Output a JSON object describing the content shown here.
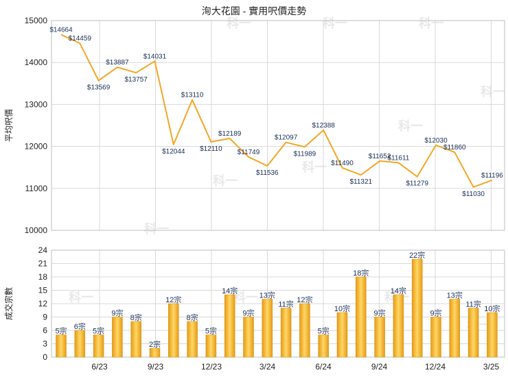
{
  "title": "洵大花園 - 實用呎價走勢",
  "colors": {
    "line": "#f5a623",
    "bar_light": "#ffd766",
    "bar_dark": "#e79a14",
    "grid": "#d8d8d8",
    "label": "#1a2d55"
  },
  "watermark": "科一",
  "chart_data": [
    {
      "type": "line",
      "title": "洵大花園 - 實用呎價走勢",
      "ylabel": "平均呎價",
      "ylim": [
        10000,
        15000
      ],
      "yticks": [
        10000,
        11000,
        12000,
        13000,
        14000,
        15000
      ],
      "grid": true,
      "series": [
        {
          "values": [
            14664,
            14459,
            13569,
            13887,
            13757,
            14031,
            12044,
            13110,
            12110,
            12189,
            11749,
            11536,
            12097,
            11989,
            12388,
            11490,
            11321,
            11652,
            11611,
            11279,
            12030,
            11860,
            11030,
            11196
          ],
          "labels": [
            "$14664",
            "$14459",
            "$13569",
            "$13887",
            "$13757",
            "$14031",
            "$12044",
            "$13110",
            "$12110",
            "$12189",
            "$11749",
            "$11536",
            "$12097",
            "$11989",
            "$12388",
            "$11490",
            "$11321",
            "$11652",
            "$11611",
            "$11279",
            "$12030",
            "$11860",
            "$11030",
            "$11196"
          ]
        }
      ]
    },
    {
      "type": "bar",
      "ylabel": "成交宗數",
      "ylim": [
        0,
        24
      ],
      "yticks": [
        0,
        3,
        6,
        9,
        12,
        15,
        18,
        21,
        24
      ],
      "grid": true,
      "x_tick_labels": [
        "6/23",
        "9/23",
        "12/23",
        "3/24",
        "6/24",
        "9/24",
        "12/24",
        "3/25"
      ],
      "values": [
        5,
        6,
        5,
        9,
        8,
        2,
        12,
        8,
        5,
        14,
        9,
        13,
        11,
        12,
        5,
        10,
        18,
        9,
        14,
        22,
        9,
        13,
        11,
        10
      ],
      "labels": [
        "5宗",
        "6宗",
        "5宗",
        "9宗",
        "8宗",
        "2宗",
        "12宗",
        "8宗",
        "5宗",
        "14宗",
        "9宗",
        "13宗",
        "11宗",
        "12宗",
        "5宗",
        "10宗",
        "18宗",
        "9宗",
        "14宗",
        "22宗",
        "9宗",
        "13宗",
        "11宗",
        "10宗"
      ]
    }
  ]
}
